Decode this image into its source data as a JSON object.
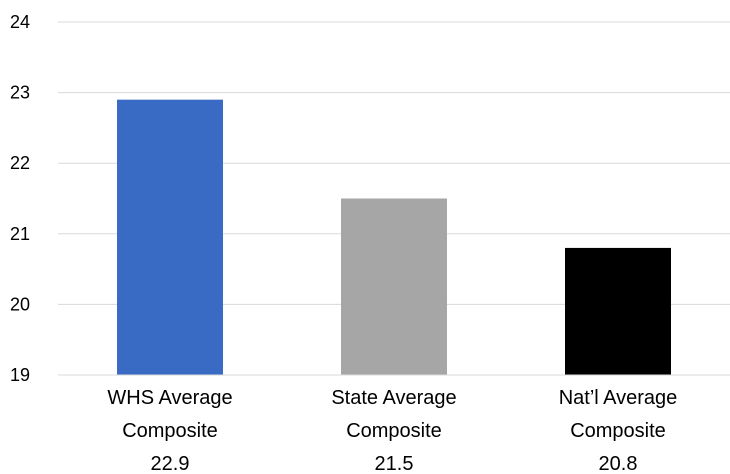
{
  "chart_data": {
    "type": "bar",
    "categories": [
      [
        "WHS Average",
        "Composite",
        "22.9"
      ],
      [
        "State Average",
        "Composite",
        "21.5"
      ],
      [
        "Nat’l Average",
        "Composite",
        "20.8"
      ]
    ],
    "values": [
      22.9,
      21.5,
      20.8
    ],
    "colors": [
      "#3a6bc4",
      "#a6a6a6",
      "#000000"
    ],
    "ylim": [
      19,
      24
    ],
    "yticks": [
      "19",
      "20",
      "21",
      "22",
      "23",
      "24"
    ],
    "grid": true,
    "title": "",
    "xlabel": "",
    "ylabel": ""
  }
}
